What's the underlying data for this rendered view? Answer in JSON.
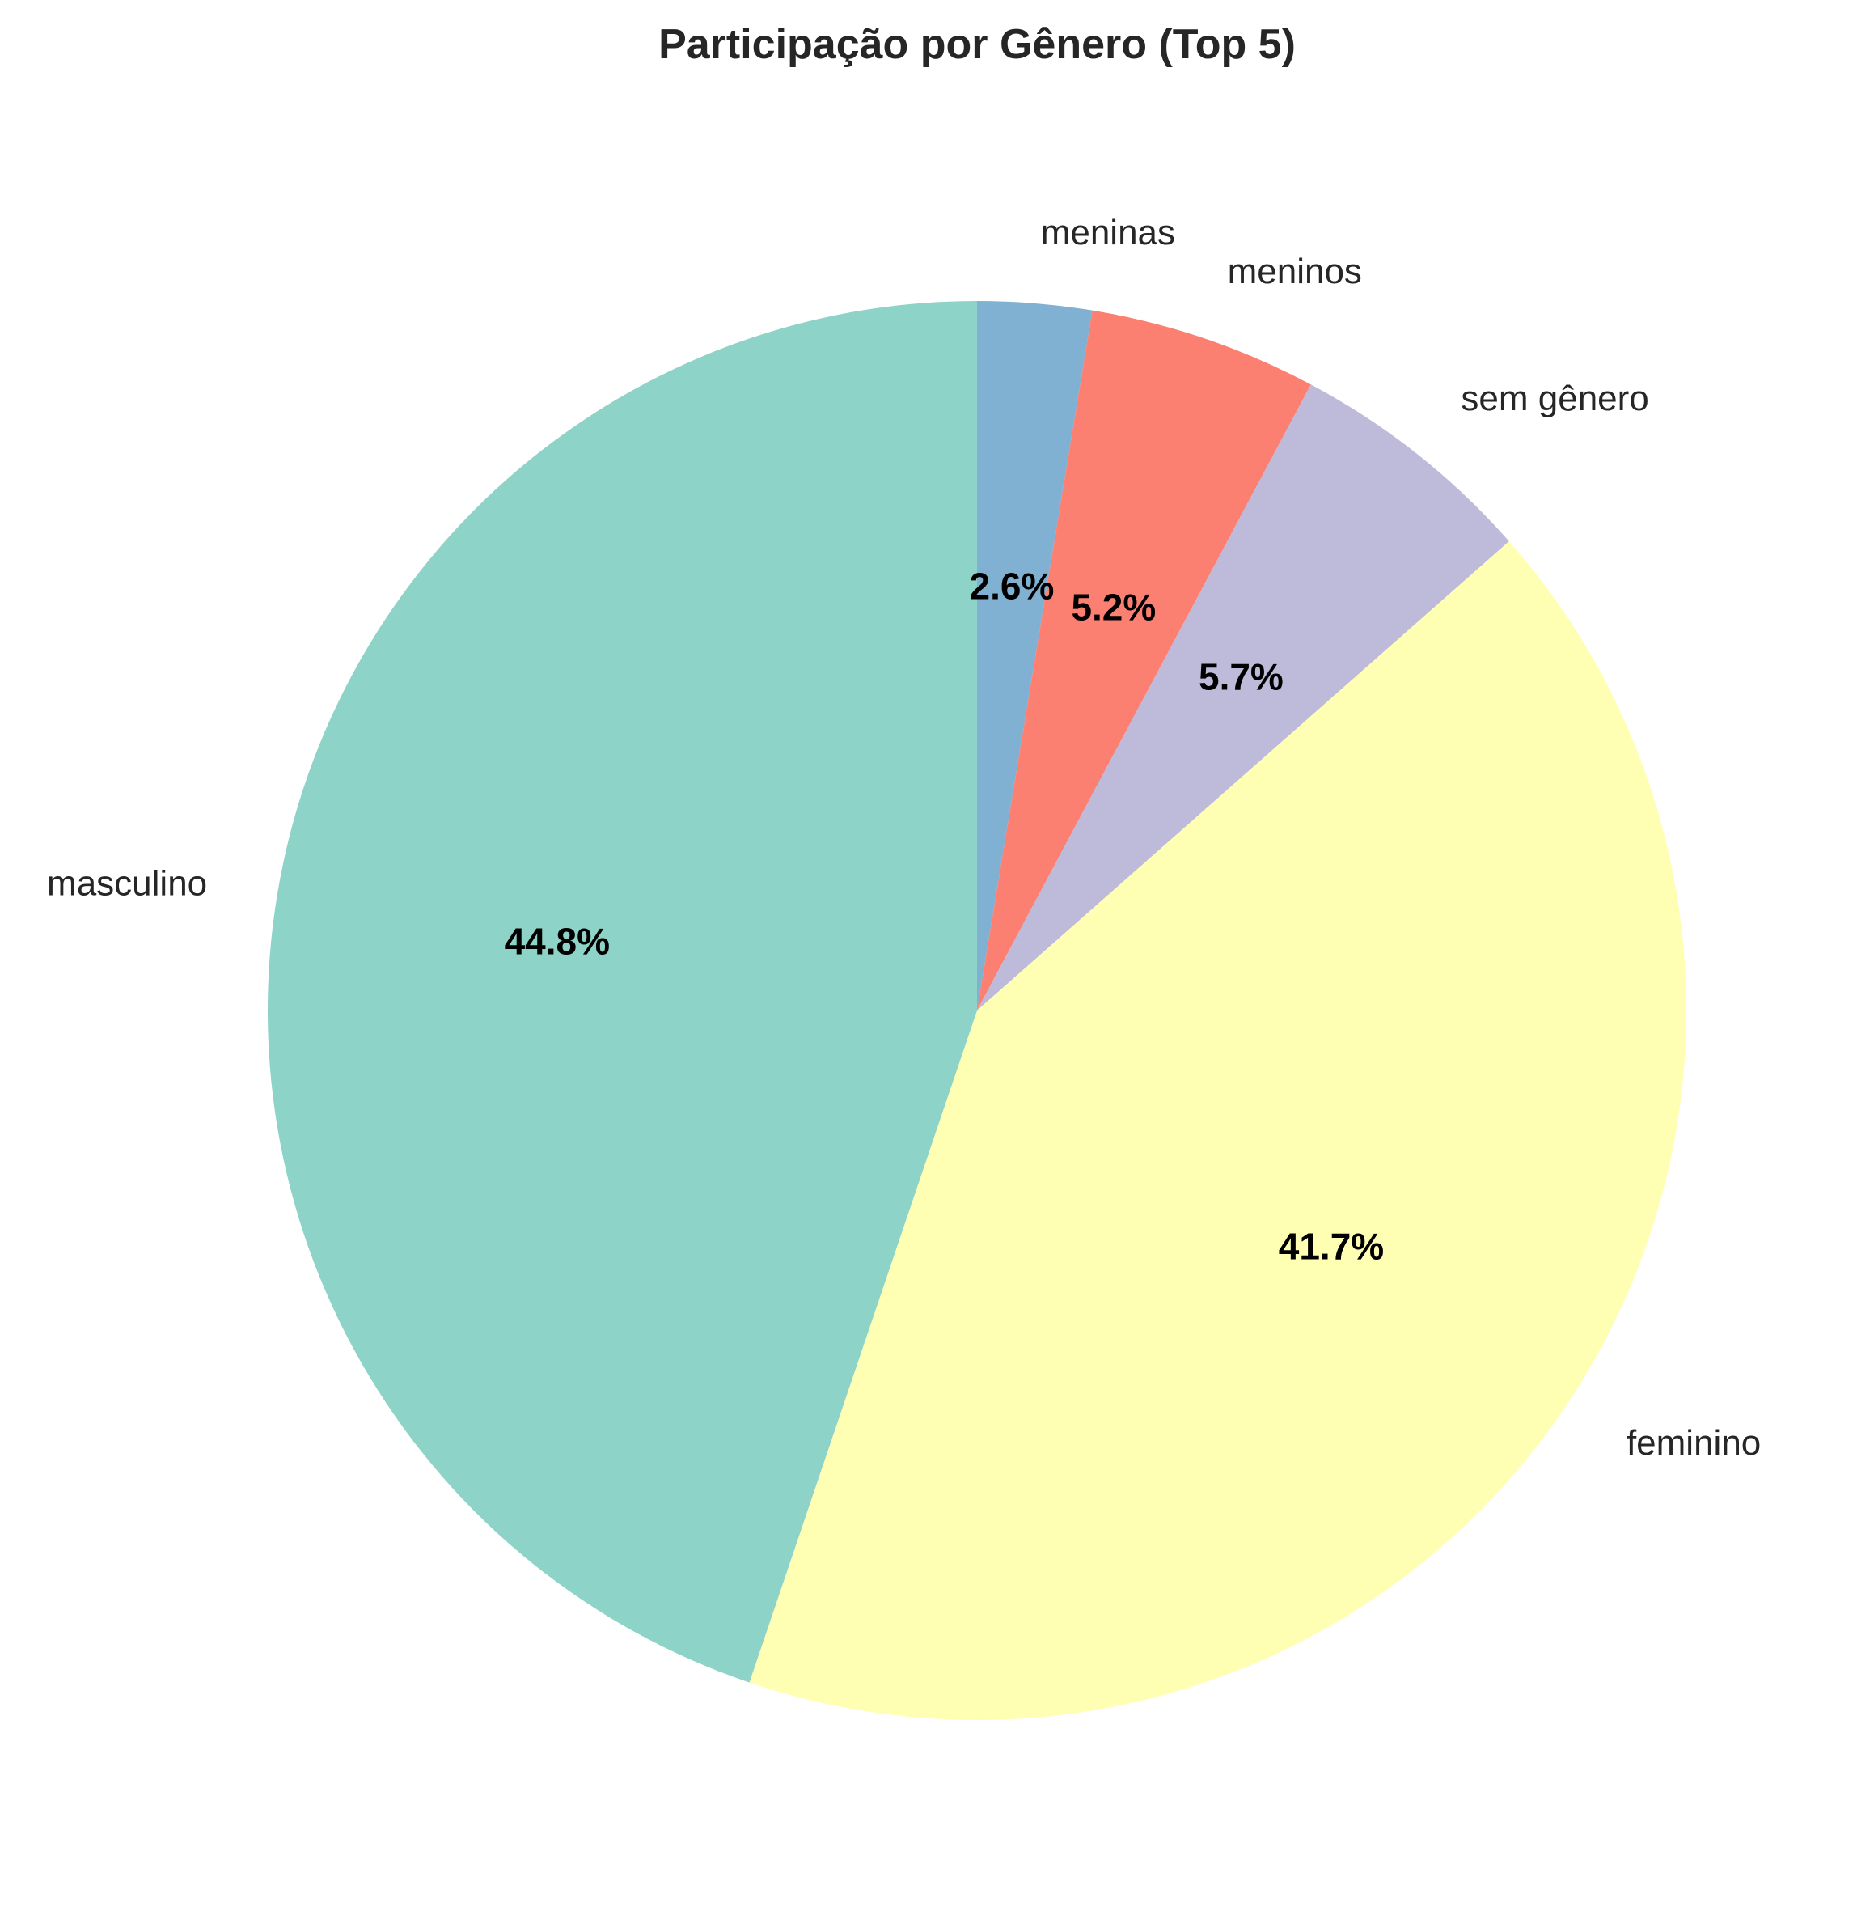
{
  "chart_data": {
    "type": "pie",
    "title": "Participação por Gênero (Top 5)",
    "start_angle_deg": 90,
    "direction": "clockwise",
    "slices": [
      {
        "label": "meninas",
        "value": 2.6,
        "pct_label": "2.6%",
        "color": "#80b1d3"
      },
      {
        "label": "meninos",
        "value": 5.2,
        "pct_label": "5.2%",
        "color": "#fb8072"
      },
      {
        "label": "sem gênero",
        "value": 5.7,
        "pct_label": "5.7%",
        "color": "#bebada"
      },
      {
        "label": "feminino",
        "value": 41.7,
        "pct_label": "41.7%",
        "color": "#ffffb3"
      },
      {
        "label": "masculino",
        "value": 44.8,
        "pct_label": "44.8%",
        "color": "#8dd3c7"
      }
    ]
  }
}
